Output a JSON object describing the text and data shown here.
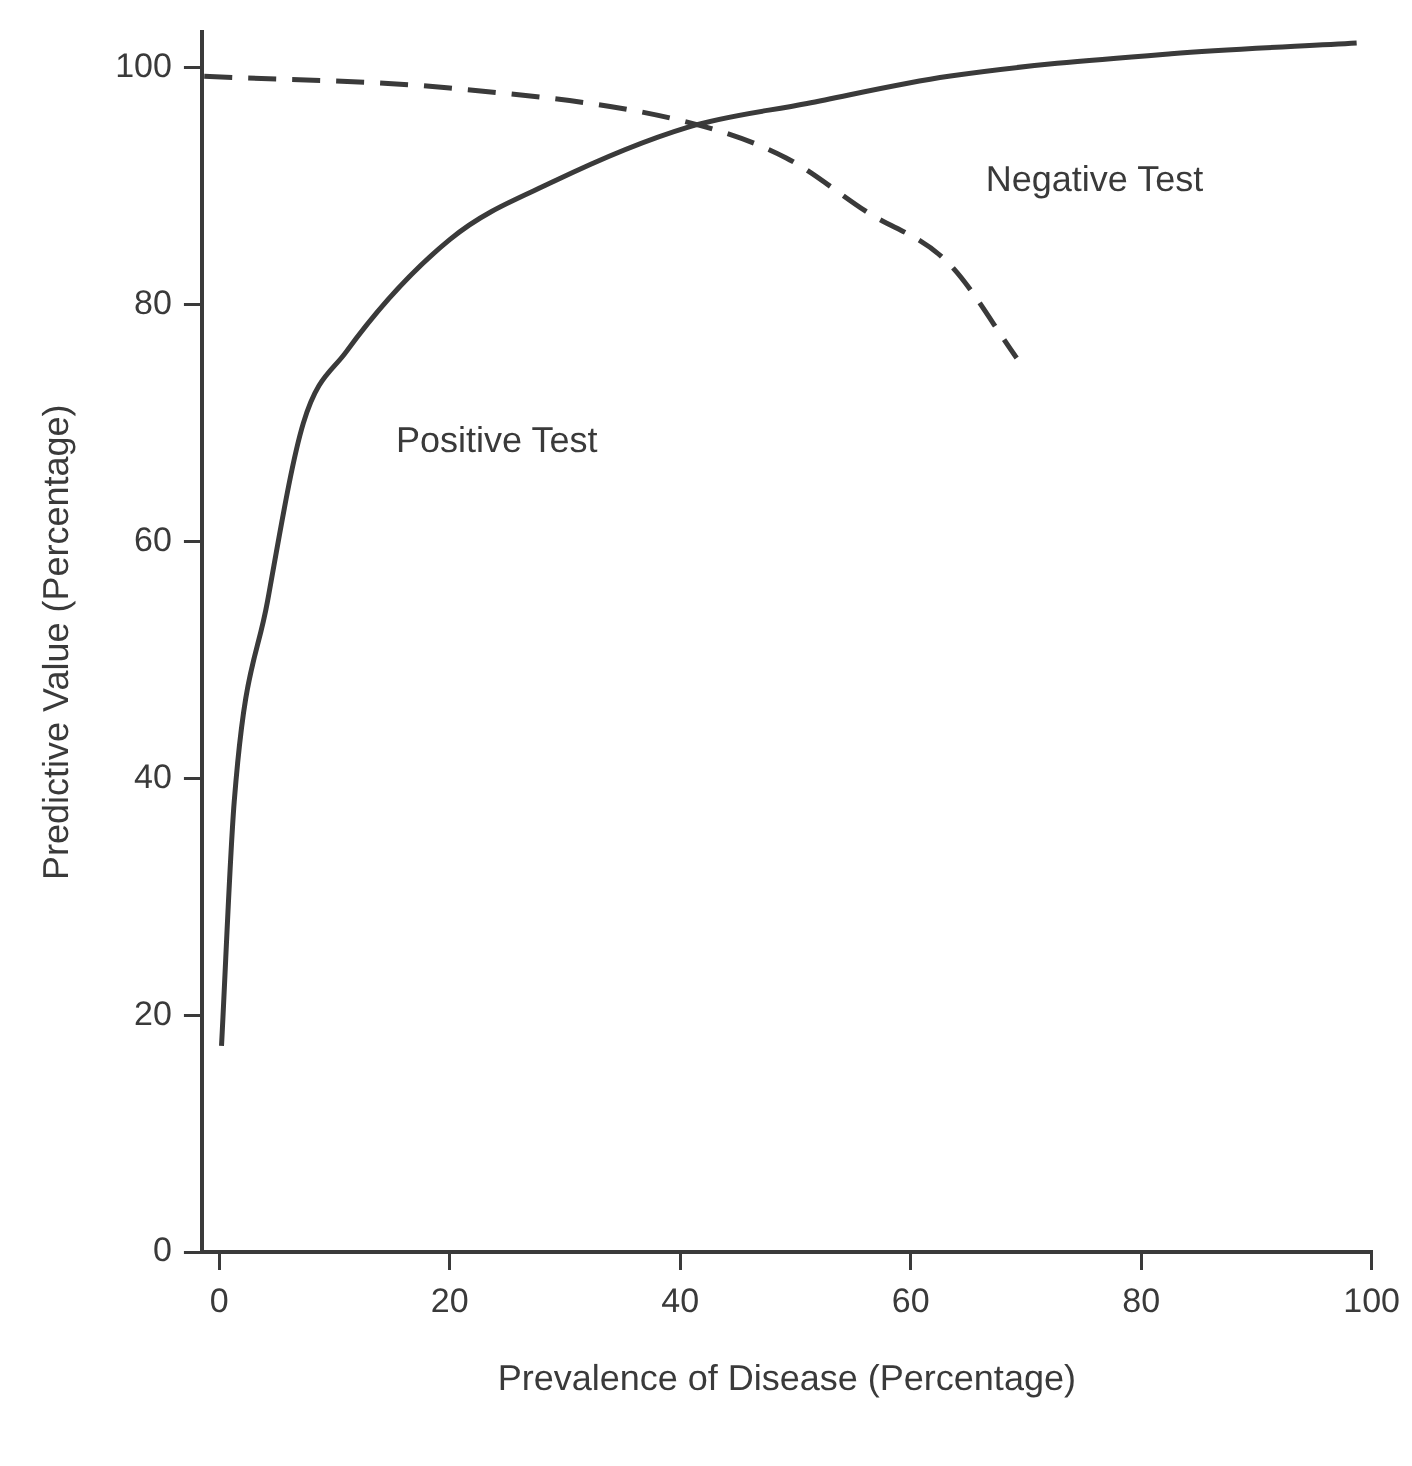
{
  "chart_data": {
    "type": "line",
    "xlabel": "Prevalence of Disease (Percentage)",
    "ylabel": "Predictive Value (Percentage)",
    "xlim": [
      -1.5,
      100
    ],
    "xticks": [
      0,
      20,
      40,
      60,
      80,
      100
    ],
    "ylim": [
      0,
      103
    ],
    "yticks": [
      0,
      20,
      40,
      60,
      80,
      100
    ],
    "grid": false,
    "legend": false,
    "marker": "none",
    "series": [
      {
        "name": "Positive Test",
        "color": "#3a3a3a",
        "line_style": "solid",
        "x": [
          0.2,
          1.3,
          4.2,
          7.3,
          11,
          20,
          29,
          40.7,
          51,
          63.3,
          82.6,
          98.7
        ],
        "values": [
          17.4,
          38,
          55,
          70,
          76,
          85.5,
          90.4,
          95,
          97,
          99.3,
          101.2,
          102.1
        ]
      },
      {
        "name": "Negative Test",
        "color": "#3a3a3a",
        "line_style": "dashed",
        "x": [
          -1.3,
          20,
          40.7,
          49.2,
          56.1,
          63.3,
          69.2
        ],
        "values": [
          99.3,
          98.3,
          95.4,
          92.4,
          87.9,
          83.5,
          75.5
        ]
      }
    ]
  }
}
